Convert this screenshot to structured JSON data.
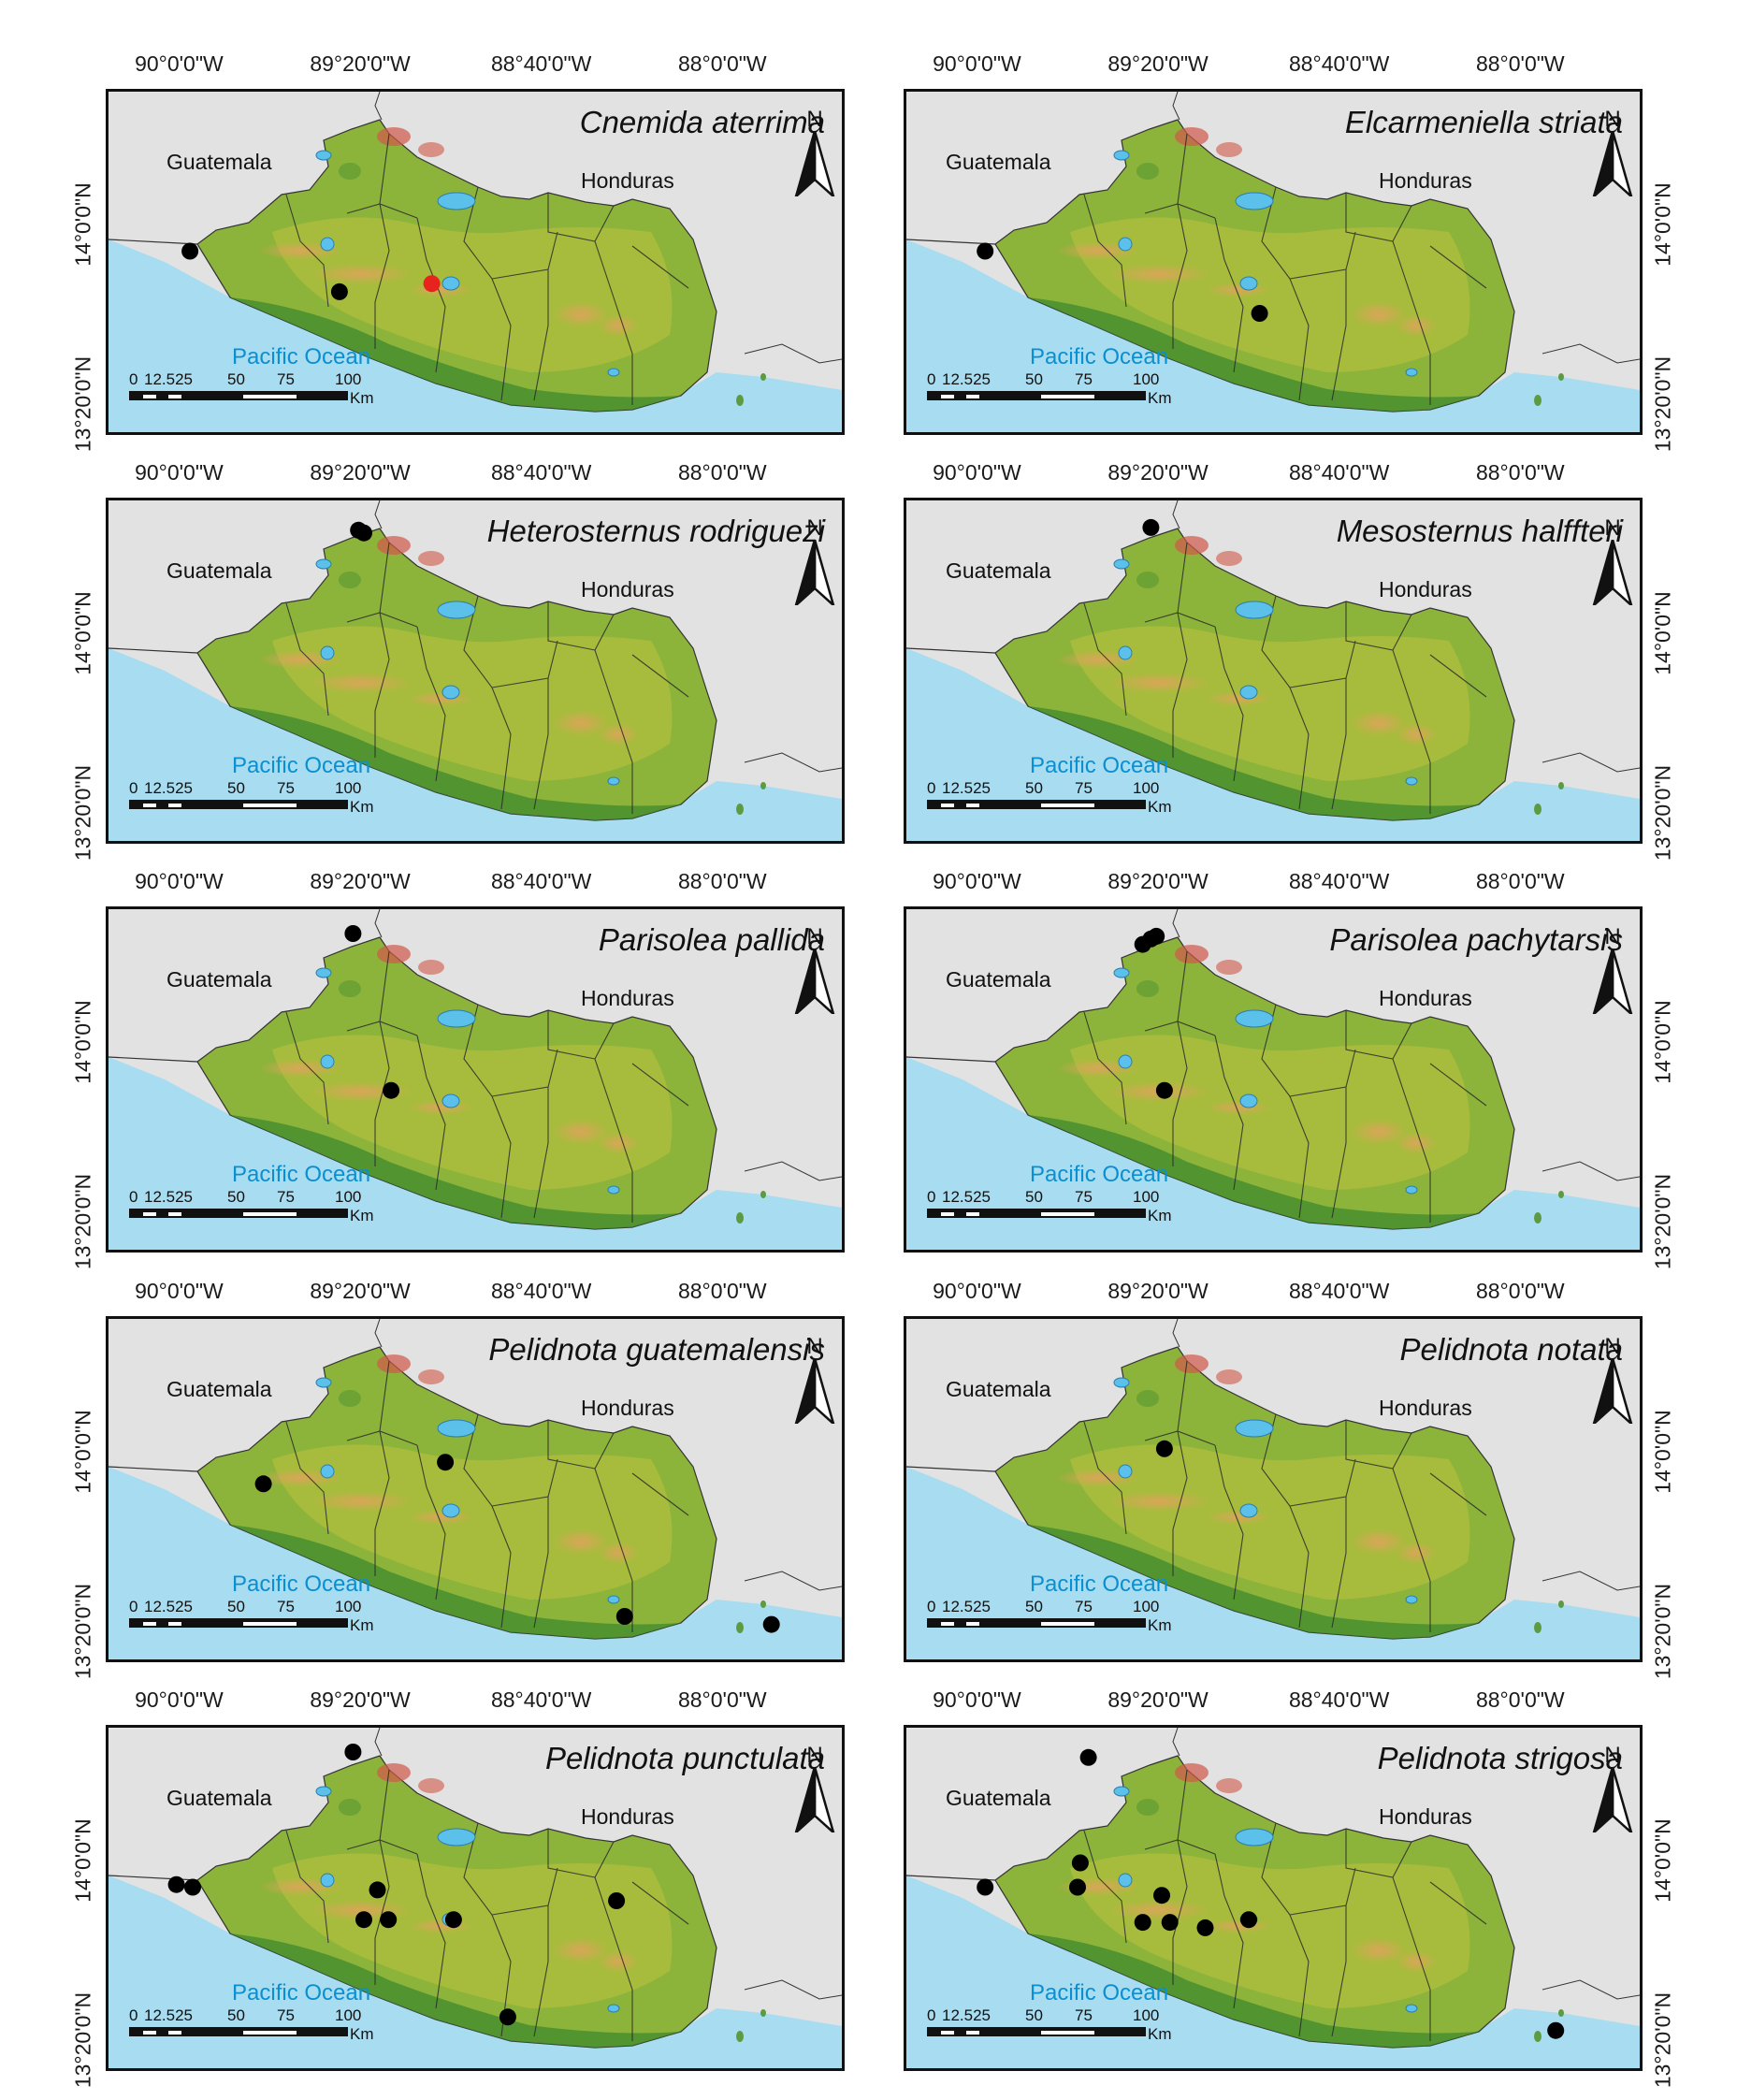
{
  "common": {
    "lon_ticks": [
      "90°0'0\"W",
      "89°20'0\"W",
      "88°40'0\"W",
      "88°0'0\"W"
    ],
    "lat_ticks": [
      "14°0'0\"N",
      "13°20'0\"N"
    ],
    "country_left": "Guatemala",
    "country_right": "Honduras",
    "ocean": "Pacific Ocean",
    "north": "N",
    "scale_labels": [
      "0",
      "12.525",
      "50",
      "75",
      "100"
    ],
    "scale_unit": "Km",
    "colors": {
      "ocean": "#a8dcf0",
      "land_low": "#3f8a2e",
      "land_mid": "#a9c23a",
      "land_high": "#d9c05a",
      "peak": "#d1584a",
      "outside": "#e2e2e2",
      "record": "#000000",
      "record_highlight": "#e8231d"
    }
  },
  "maps": [
    {
      "species": "Cnemida aterrima",
      "records": [
        {
          "lon": -89.97,
          "lat": 13.91,
          "highlight": false
        },
        {
          "lon": -89.42,
          "lat": 13.76,
          "highlight": false
        },
        {
          "lon": -89.08,
          "lat": 13.79,
          "highlight": true
        }
      ]
    },
    {
      "species": "Elcarmeniella striata",
      "records": [
        {
          "lon": -89.98,
          "lat": 13.91,
          "highlight": false
        },
        {
          "lon": -88.97,
          "lat": 13.68,
          "highlight": false
        }
      ]
    },
    {
      "species": "Heterosternus rodriguezi",
      "records": [
        {
          "lon": -89.35,
          "lat": 14.39,
          "highlight": false
        },
        {
          "lon": -89.33,
          "lat": 14.38,
          "highlight": false
        }
      ]
    },
    {
      "species": "Mesosternus halffteri",
      "records": [
        {
          "lon": -89.37,
          "lat": 14.4,
          "highlight": false
        }
      ]
    },
    {
      "species": "Parisolea pallida",
      "records": [
        {
          "lon": -89.37,
          "lat": 14.41,
          "highlight": false
        },
        {
          "lon": -89.23,
          "lat": 13.83,
          "highlight": false
        }
      ]
    },
    {
      "species": "Parisolea pachytarsis",
      "records": [
        {
          "lon": -89.4,
          "lat": 14.37,
          "highlight": false
        },
        {
          "lon": -89.37,
          "lat": 14.39,
          "highlight": false
        },
        {
          "lon": -89.35,
          "lat": 14.4,
          "highlight": false
        },
        {
          "lon": -89.32,
          "lat": 13.83,
          "highlight": false
        }
      ]
    },
    {
      "species": "Pelidnota guatemalensis",
      "records": [
        {
          "lon": -89.7,
          "lat": 13.89,
          "highlight": false
        },
        {
          "lon": -89.03,
          "lat": 13.97,
          "highlight": false
        },
        {
          "lon": -88.37,
          "lat": 13.4,
          "highlight": false
        },
        {
          "lon": -87.83,
          "lat": 13.37,
          "highlight": false
        }
      ]
    },
    {
      "species": "Pelidnota notata",
      "records": [
        {
          "lon": -89.32,
          "lat": 14.02,
          "highlight": false
        }
      ]
    },
    {
      "species": "Pelidnota punctulata",
      "records": [
        {
          "lon": -89.37,
          "lat": 14.41,
          "highlight": false
        },
        {
          "lon": -90.02,
          "lat": 13.92,
          "highlight": false
        },
        {
          "lon": -89.96,
          "lat": 13.91,
          "highlight": false
        },
        {
          "lon": -89.28,
          "lat": 13.9,
          "highlight": false
        },
        {
          "lon": -89.33,
          "lat": 13.79,
          "highlight": false
        },
        {
          "lon": -89.24,
          "lat": 13.79,
          "highlight": false
        },
        {
          "lon": -89.0,
          "lat": 13.79,
          "highlight": false
        },
        {
          "lon": -88.4,
          "lat": 13.86,
          "highlight": false
        },
        {
          "lon": -88.8,
          "lat": 13.43,
          "highlight": false
        }
      ]
    },
    {
      "species": "Pelidnota strigosa",
      "records": [
        {
          "lon": -89.6,
          "lat": 14.39,
          "highlight": false
        },
        {
          "lon": -89.98,
          "lat": 13.91,
          "highlight": false
        },
        {
          "lon": -89.63,
          "lat": 14.0,
          "highlight": false
        },
        {
          "lon": -89.64,
          "lat": 13.91,
          "highlight": false
        },
        {
          "lon": -89.33,
          "lat": 13.88,
          "highlight": false
        },
        {
          "lon": -89.4,
          "lat": 13.78,
          "highlight": false
        },
        {
          "lon": -89.3,
          "lat": 13.78,
          "highlight": false
        },
        {
          "lon": -89.17,
          "lat": 13.76,
          "highlight": false
        },
        {
          "lon": -89.01,
          "lat": 13.79,
          "highlight": false
        },
        {
          "lon": -87.88,
          "lat": 13.38,
          "highlight": false
        }
      ]
    }
  ]
}
